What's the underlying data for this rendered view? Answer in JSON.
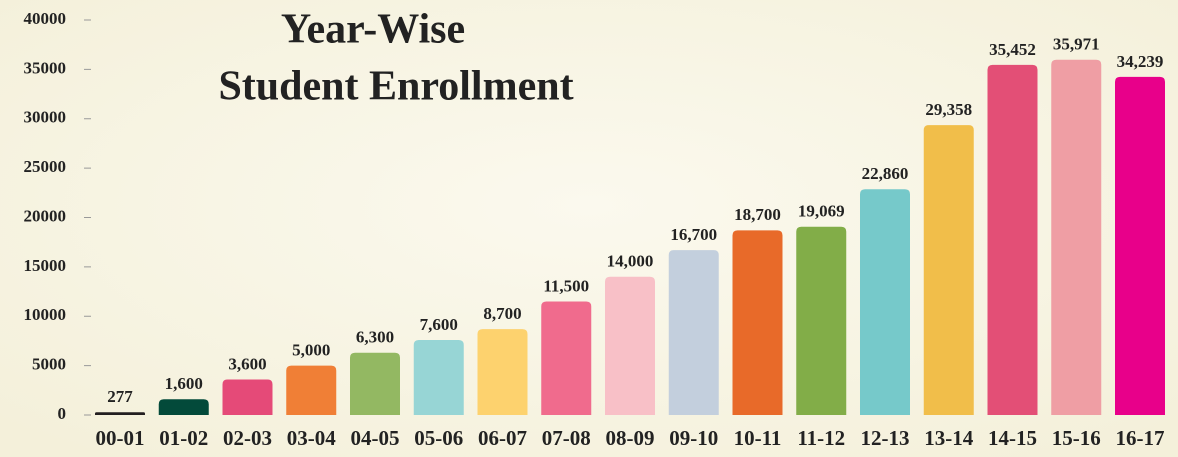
{
  "chart_data": {
    "type": "bar",
    "title": [
      "Year-Wise",
      "Student Enrollment"
    ],
    "categories": [
      "00-01",
      "01-02",
      "02-03",
      "03-04",
      "04-05",
      "05-06",
      "06-07",
      "07-08",
      "08-09",
      "09-10",
      "10-11",
      "11-12",
      "12-13",
      "13-14",
      "14-15",
      "15-16",
      "16-17"
    ],
    "values": [
      277,
      1600,
      3600,
      5000,
      6300,
      7600,
      8700,
      11500,
      14000,
      16700,
      18700,
      19069,
      22860,
      29358,
      35452,
      35971,
      34239
    ],
    "value_labels": [
      "277",
      "1,600",
      "3,600",
      "5,000",
      "6,300",
      "7,600",
      "8,700",
      "11,500",
      "14,000",
      "16,700",
      "18,700",
      "19,069",
      "22,860",
      "29,358",
      "35,452",
      "35,971",
      "34,239"
    ],
    "colors": [
      "#231f20",
      "#034a3a",
      "#e54a78",
      "#f07f36",
      "#93b862",
      "#97d5d5",
      "#fdd26e",
      "#f06b8d",
      "#f8c0c7",
      "#c3cfdd",
      "#e86a29",
      "#82ad48",
      "#76c9ca",
      "#f1be4a",
      "#e34f76",
      "#ef9ea4",
      "#e8008a"
    ],
    "ylim": [
      0,
      40000
    ],
    "yticks": [
      0,
      5000,
      10000,
      15000,
      20000,
      25000,
      30000,
      35000,
      40000
    ]
  }
}
